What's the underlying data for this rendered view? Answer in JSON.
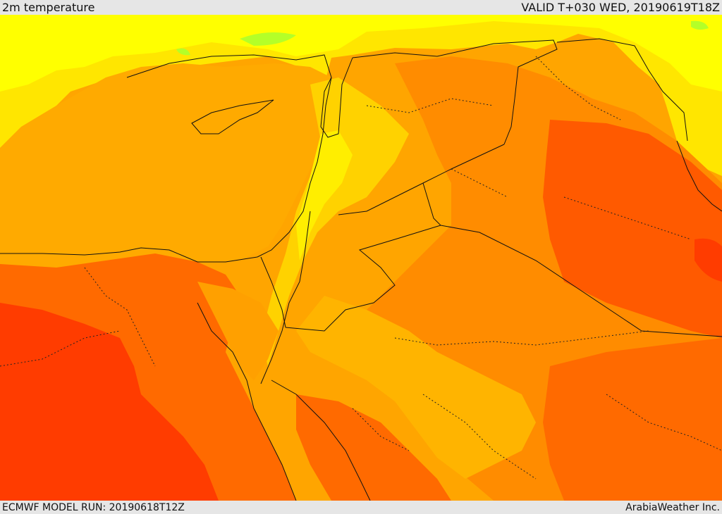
{
  "header": {
    "title": "2m temperature",
    "valid": "VALID T+030 WED, 20190619T18Z"
  },
  "footer": {
    "model_run": "ECMWF MODEL RUN: 20190618T12Z",
    "credit": "ArabiaWeather Inc."
  },
  "colors": {
    "warm_yellow": "#ffff00",
    "light_yellow": "#ffe100",
    "pale_orange": "#ffc800",
    "orange": "#ffa500",
    "dark_orange": "#ff8c00",
    "red_orange": "#ff5a00",
    "red": "#ff3c00",
    "green_patch": "#b4ff28"
  }
}
